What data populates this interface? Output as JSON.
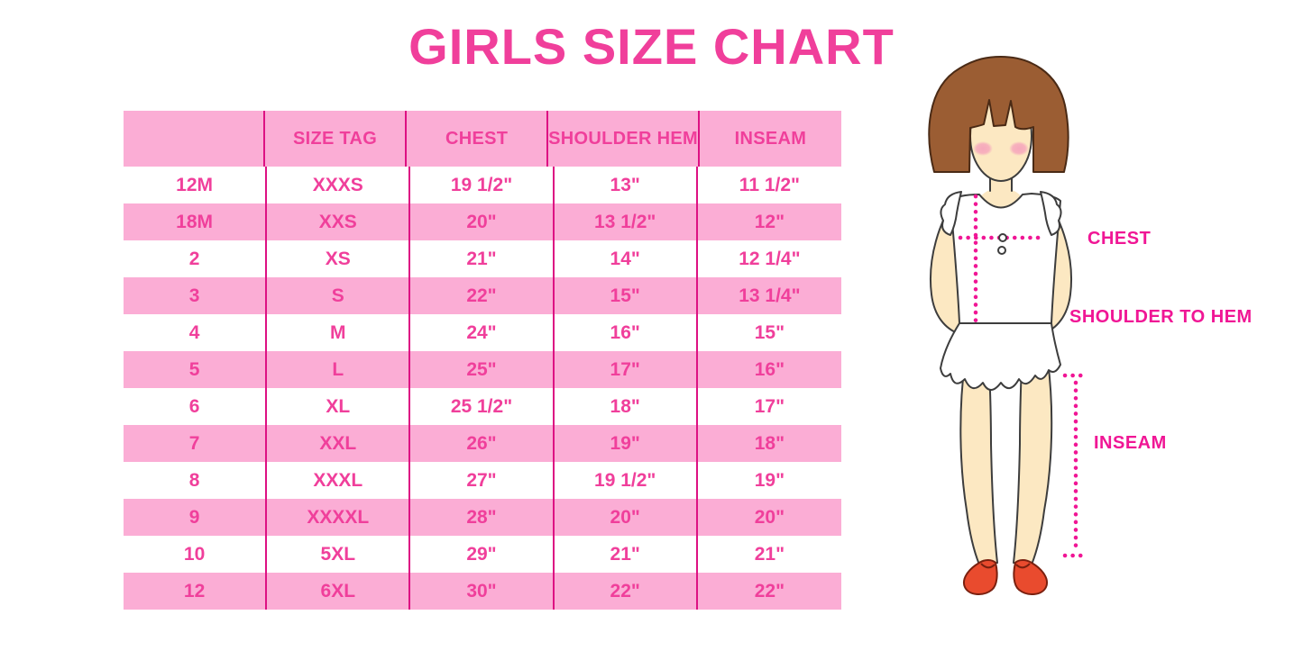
{
  "title": "GIRLS SIZE CHART",
  "chart_data": {
    "type": "table",
    "title": "GIRLS SIZE CHART",
    "columns": [
      "",
      "SIZE TAG",
      "CHEST",
      "SHOULDER HEM",
      "INSEAM"
    ],
    "rows": [
      [
        "12M",
        "XXXS",
        "19 1/2\"",
        "13\"",
        "11 1/2\""
      ],
      [
        "18M",
        "XXS",
        "20\"",
        "13 1/2\"",
        "12\""
      ],
      [
        "2",
        "XS",
        "21\"",
        "14\"",
        "12 1/4\""
      ],
      [
        "3",
        "S",
        "22\"",
        "15\"",
        "13 1/4\""
      ],
      [
        "4",
        "M",
        "24\"",
        "16\"",
        "15\""
      ],
      [
        "5",
        "L",
        "25\"",
        "17\"",
        "16\""
      ],
      [
        "6",
        "XL",
        "25 1/2\"",
        "18\"",
        "17\""
      ],
      [
        "7",
        "XXL",
        "26\"",
        "19\"",
        "18\""
      ],
      [
        "8",
        "XXXL",
        "27\"",
        "19 1/2\"",
        "19\""
      ],
      [
        "9",
        "XXXXL",
        "28\"",
        "20\"",
        "20\""
      ],
      [
        "10",
        "5XL",
        "29\"",
        "21\"",
        "21\""
      ],
      [
        "12",
        "6XL",
        "30\"",
        "22\"",
        "22\""
      ]
    ],
    "row_striping": "header pink, then alternating white/pink starting with white",
    "legend_position": "none",
    "grid": "vertical magenta column separators only"
  },
  "figure": {
    "chest_label": "CHEST",
    "shoulder_to_hem_label": "SHOULDER TO HEM",
    "inseam_label": "INSEAM"
  },
  "colors": {
    "title_pink": "#F03F9B",
    "row_pink": "#FBADD5",
    "cell_text_pink": "#F03F9B",
    "column_line_magenta": "#DD1183",
    "measure_magenta": "#F01695",
    "hair_brown": "#9B5D33",
    "skin": "#FCE8C2",
    "shoe_red": "#E94B2E",
    "background": "#FFFFFF"
  }
}
